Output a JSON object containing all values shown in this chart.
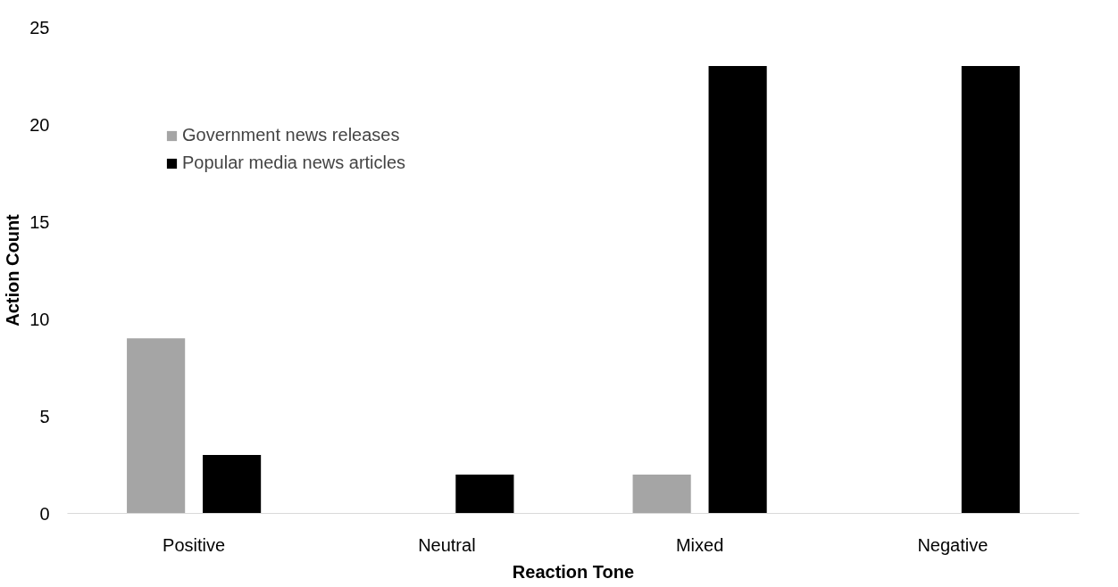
{
  "chart_data": {
    "type": "bar",
    "xlabel": "Reaction Tone",
    "ylabel": "Action Count",
    "categories": [
      "Positive",
      "Neutral",
      "Mixed",
      "Negative"
    ],
    "series": [
      {
        "name": "Government news releases",
        "color": "#a5a5a5",
        "values": [
          9,
          0,
          2,
          0
        ]
      },
      {
        "name": "Popular media news articles",
        "color": "#000000",
        "values": [
          3,
          2,
          23,
          23
        ]
      }
    ],
    "ylim": [
      0,
      25
    ],
    "yticks": [
      0,
      5,
      10,
      15,
      20,
      25
    ],
    "legend": "top left"
  }
}
